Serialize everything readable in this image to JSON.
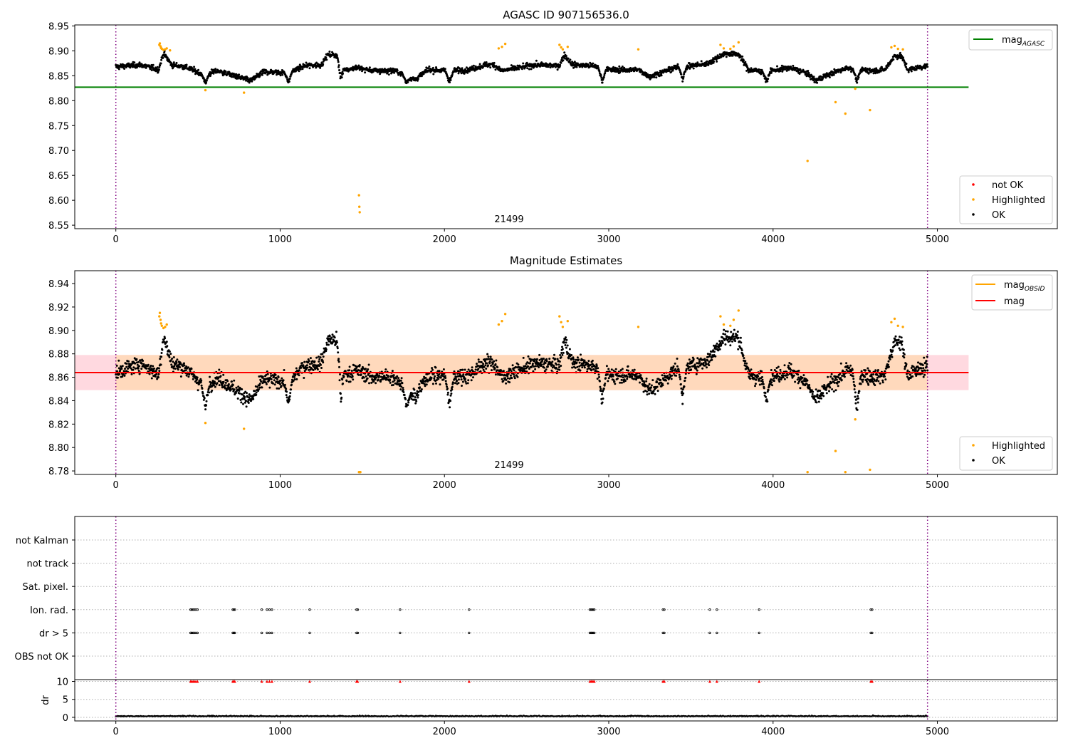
{
  "chart_data": [
    {
      "type": "scatter",
      "title": "AGASC ID 907156536.0",
      "annotation": "21499",
      "x_range": [
        -250,
        5730
      ],
      "ylim": [
        8.543,
        8.952
      ],
      "x_ticks": [
        "0",
        "1000",
        "2000",
        "3000",
        "4000",
        "5000"
      ],
      "x_tick_values": [
        0,
        1000,
        2000,
        3000,
        4000,
        5000
      ],
      "y_ticks": [
        "8.55",
        "8.60",
        "8.65",
        "8.70",
        "8.75",
        "8.80",
        "8.85",
        "8.90",
        "8.95"
      ],
      "y_tick_values": [
        8.55,
        8.6,
        8.65,
        8.7,
        8.75,
        8.8,
        8.85,
        8.9,
        8.95
      ],
      "vlines": [
        0,
        4940
      ],
      "hline": {
        "name": "mag",
        "subscript": "AGASC",
        "y": 8.827,
        "x": [
          -250,
          5190
        ],
        "color": "#008000"
      },
      "legend_lines": [
        {
          "name": "mag",
          "subscript": "AGASC",
          "color": "#008000"
        }
      ],
      "legend_markers": [
        {
          "name": "not OK",
          "color": "#ff0000"
        },
        {
          "name": "Highlighted",
          "color": "#ffa500"
        },
        {
          "name": "OK",
          "color": "#000000"
        }
      ],
      "series": [
        {
          "name": "OK",
          "color": "#000000",
          "x_start": 0,
          "x_end": 4940,
          "count": 2500,
          "baseline": [
            [
              0,
              8.868
            ],
            [
              150,
              8.872
            ],
            [
              260,
              8.862
            ],
            [
              290,
              8.895
            ],
            [
              340,
              8.872
            ],
            [
              420,
              8.868
            ],
            [
              540,
              8.852
            ],
            [
              620,
              8.86
            ],
            [
              760,
              8.846
            ],
            [
              820,
              8.84
            ],
            [
              900,
              8.858
            ],
            [
              1050,
              8.856
            ],
            [
              1150,
              8.87
            ],
            [
              1250,
              8.872
            ],
            [
              1290,
              8.892
            ],
            [
              1360,
              8.892
            ],
            [
              1400,
              8.862
            ],
            [
              1470,
              8.866
            ],
            [
              1560,
              8.86
            ],
            [
              1700,
              8.86
            ],
            [
              1820,
              8.842
            ],
            [
              1900,
              8.862
            ],
            [
              2050,
              8.86
            ],
            [
              2150,
              8.862
            ],
            [
              2250,
              8.872
            ],
            [
              2300,
              8.872
            ],
            [
              2350,
              8.86
            ],
            [
              2450,
              8.866
            ],
            [
              2550,
              8.872
            ],
            [
              2700,
              8.87
            ],
            [
              2730,
              8.892
            ],
            [
              2780,
              8.872
            ],
            [
              2900,
              8.87
            ],
            [
              3000,
              8.862
            ],
            [
              3180,
              8.862
            ],
            [
              3250,
              8.848
            ],
            [
              3400,
              8.866
            ],
            [
              3600,
              8.874
            ],
            [
              3700,
              8.894
            ],
            [
              3790,
              8.894
            ],
            [
              3850,
              8.862
            ],
            [
              3950,
              8.858
            ],
            [
              4100,
              8.866
            ],
            [
              4200,
              8.856
            ],
            [
              4260,
              8.84
            ],
            [
              4320,
              8.85
            ],
            [
              4450,
              8.866
            ],
            [
              4600,
              8.86
            ],
            [
              4680,
              8.862
            ],
            [
              4740,
              8.89
            ],
            [
              4780,
              8.89
            ],
            [
              4820,
              8.862
            ],
            [
              4940,
              8.87
            ]
          ],
          "noise": 0.0045,
          "spike_dips": [
            [
              545,
              8.832
            ],
            [
              1050,
              8.833
            ],
            [
              1370,
              8.835
            ],
            [
              1770,
              8.832
            ],
            [
              2030,
              8.831
            ],
            [
              2960,
              8.833
            ],
            [
              3450,
              8.836
            ],
            [
              3960,
              8.833
            ],
            [
              4510,
              8.833
            ]
          ]
        },
        {
          "name": "Highlighted",
          "color": "#ffa500",
          "points": [
            [
              265,
              8.912
            ],
            [
              268,
              8.915
            ],
            [
              272,
              8.909
            ],
            [
              275,
              8.906
            ],
            [
              280,
              8.904
            ],
            [
              290,
              8.902
            ],
            [
              300,
              8.903
            ],
            [
              310,
              8.905
            ],
            [
              330,
              8.901
            ],
            [
              545,
              8.821
            ],
            [
              780,
              8.816
            ],
            [
              1480,
              8.61
            ],
            [
              1482,
              8.587
            ],
            [
              1484,
              8.576
            ],
            [
              2330,
              8.905
            ],
            [
              2350,
              8.908
            ],
            [
              2370,
              8.914
            ],
            [
              2700,
              8.912
            ],
            [
              2710,
              8.907
            ],
            [
              2720,
              8.903
            ],
            [
              2750,
              8.908
            ],
            [
              3180,
              8.903
            ],
            [
              3680,
              8.912
            ],
            [
              3700,
              8.905
            ],
            [
              3740,
              8.904
            ],
            [
              3760,
              8.909
            ],
            [
              3790,
              8.917
            ],
            [
              4210,
              8.679
            ],
            [
              4380,
              8.797
            ],
            [
              4440,
              8.774
            ],
            [
              4500,
              8.824
            ],
            [
              4590,
              8.781
            ],
            [
              4720,
              8.907
            ],
            [
              4740,
              8.91
            ],
            [
              4760,
              8.904
            ],
            [
              4790,
              8.903
            ]
          ]
        }
      ]
    },
    {
      "type": "scatter",
      "title": "Magnitude Estimates",
      "annotation": "21499",
      "x_range": [
        -250,
        5730
      ],
      "ylim": [
        8.777,
        8.951
      ],
      "x_ticks": [
        "0",
        "1000",
        "2000",
        "3000",
        "4000",
        "5000"
      ],
      "x_tick_values": [
        0,
        1000,
        2000,
        3000,
        4000,
        5000
      ],
      "y_ticks": [
        "8.78",
        "8.80",
        "8.82",
        "8.84",
        "8.86",
        "8.88",
        "8.90",
        "8.92",
        "8.94"
      ],
      "y_tick_values": [
        8.78,
        8.8,
        8.82,
        8.84,
        8.86,
        8.88,
        8.9,
        8.92,
        8.94
      ],
      "vlines": [
        0,
        4940
      ],
      "mag_line": {
        "name": "mag",
        "y": 8.864,
        "x": [
          -250,
          5190
        ],
        "color": "#ff0000"
      },
      "band_outer": {
        "y": [
          8.849,
          8.879
        ],
        "x": [
          -250,
          5190
        ],
        "color": "#ffc0cb"
      },
      "band_inner": {
        "y": [
          8.849,
          8.879
        ],
        "x": [
          0,
          4940
        ],
        "color": "#ffd8b8"
      },
      "legend_lines": [
        {
          "name": "mag",
          "subscript": "OBSID",
          "color": "#ffa500"
        },
        {
          "name": "mag",
          "subscript": "",
          "color": "#ff0000"
        }
      ],
      "legend_markers": [
        {
          "name": "Highlighted",
          "color": "#ffa500"
        },
        {
          "name": "OK",
          "color": "#000000"
        }
      ],
      "series": [
        {
          "name": "OK",
          "color": "#000000",
          "x_start": 0,
          "x_end": 4940,
          "count": 2500,
          "baseline": [
            [
              0,
              8.864
            ],
            [
              150,
              8.872
            ],
            [
              260,
              8.862
            ],
            [
              290,
              8.895
            ],
            [
              340,
              8.872
            ],
            [
              420,
              8.868
            ],
            [
              540,
              8.852
            ],
            [
              620,
              8.86
            ],
            [
              760,
              8.846
            ],
            [
              820,
              8.84
            ],
            [
              900,
              8.858
            ],
            [
              1050,
              8.856
            ],
            [
              1150,
              8.87
            ],
            [
              1250,
              8.872
            ],
            [
              1290,
              8.892
            ],
            [
              1360,
              8.892
            ],
            [
              1400,
              8.862
            ],
            [
              1470,
              8.866
            ],
            [
              1560,
              8.86
            ],
            [
              1700,
              8.86
            ],
            [
              1820,
              8.842
            ],
            [
              1900,
              8.862
            ],
            [
              2050,
              8.86
            ],
            [
              2150,
              8.862
            ],
            [
              2250,
              8.872
            ],
            [
              2300,
              8.872
            ],
            [
              2350,
              8.86
            ],
            [
              2450,
              8.866
            ],
            [
              2550,
              8.872
            ],
            [
              2700,
              8.87
            ],
            [
              2730,
              8.892
            ],
            [
              2780,
              8.872
            ],
            [
              2900,
              8.87
            ],
            [
              3000,
              8.862
            ],
            [
              3180,
              8.862
            ],
            [
              3250,
              8.848
            ],
            [
              3400,
              8.866
            ],
            [
              3600,
              8.874
            ],
            [
              3700,
              8.894
            ],
            [
              3790,
              8.894
            ],
            [
              3850,
              8.862
            ],
            [
              3950,
              8.858
            ],
            [
              4100,
              8.866
            ],
            [
              4200,
              8.856
            ],
            [
              4260,
              8.84
            ],
            [
              4320,
              8.85
            ],
            [
              4450,
              8.866
            ],
            [
              4600,
              8.86
            ],
            [
              4680,
              8.862
            ],
            [
              4740,
              8.89
            ],
            [
              4780,
              8.89
            ],
            [
              4820,
              8.862
            ],
            [
              4940,
              8.87
            ]
          ],
          "noise": 0.0055,
          "spike_dips": [
            [
              545,
              8.832
            ],
            [
              1050,
              8.833
            ],
            [
              1370,
              8.835
            ],
            [
              1770,
              8.83
            ],
            [
              2030,
              8.829
            ],
            [
              2960,
              8.833
            ],
            [
              3450,
              8.836
            ],
            [
              3960,
              8.833
            ],
            [
              4510,
              8.826
            ]
          ]
        },
        {
          "name": "Highlighted",
          "color": "#ffa500",
          "points": [
            [
              265,
              8.912
            ],
            [
              268,
              8.915
            ],
            [
              272,
              8.909
            ],
            [
              275,
              8.906
            ],
            [
              280,
              8.904
            ],
            [
              290,
              8.902
            ],
            [
              300,
              8.903
            ],
            [
              310,
              8.905
            ],
            [
              545,
              8.821
            ],
            [
              780,
              8.816
            ],
            [
              1480,
              8.779
            ],
            [
              1484,
              8.779
            ],
            [
              1488,
              8.779
            ],
            [
              2330,
              8.905
            ],
            [
              2350,
              8.908
            ],
            [
              2370,
              8.914
            ],
            [
              2700,
              8.912
            ],
            [
              2710,
              8.907
            ],
            [
              2720,
              8.903
            ],
            [
              2750,
              8.908
            ],
            [
              3180,
              8.903
            ],
            [
              3680,
              8.912
            ],
            [
              3700,
              8.905
            ],
            [
              3740,
              8.904
            ],
            [
              3760,
              8.909
            ],
            [
              3790,
              8.917
            ],
            [
              4210,
              8.779
            ],
            [
              4380,
              8.797
            ],
            [
              4440,
              8.779
            ],
            [
              4500,
              8.824
            ],
            [
              4590,
              8.781
            ],
            [
              4720,
              8.907
            ],
            [
              4740,
              8.91
            ],
            [
              4760,
              8.904
            ],
            [
              4790,
              8.903
            ]
          ]
        }
      ]
    },
    {
      "type": "scatter",
      "title": "",
      "x_range": [
        -250,
        5730
      ],
      "x_ticks": [
        "0",
        "1000",
        "2000",
        "3000",
        "4000",
        "5000"
      ],
      "x_tick_values": [
        0,
        1000,
        2000,
        3000,
        4000,
        5000
      ],
      "vlines": [
        0,
        4940
      ],
      "categories": [
        "not Kalman",
        "not track",
        "Sat. pixel.",
        "Ion. rad.",
        "dr > 5",
        "OBS not OK"
      ],
      "flag_x": [
        455,
        462,
        470,
        478,
        487,
        497,
        712,
        718,
        724,
        888,
        920,
        935,
        950,
        1180,
        1465,
        1472,
        1730,
        2150,
        2885,
        2892,
        2898,
        2905,
        2912,
        3330,
        3338,
        3615,
        3658,
        3915,
        4595,
        4603
      ],
      "flag_rows": [
        "Ion. rad.",
        "dr > 5"
      ],
      "dr_panel": {
        "ylabel": "dr",
        "ylim": [
          -1,
          10.5
        ],
        "y_ticks": [
          "0",
          "5",
          "10"
        ],
        "y_tick_values": [
          0,
          5,
          10
        ],
        "outlier_y": 10,
        "baseline_y": 0.25,
        "noise": 0.18
      }
    }
  ]
}
